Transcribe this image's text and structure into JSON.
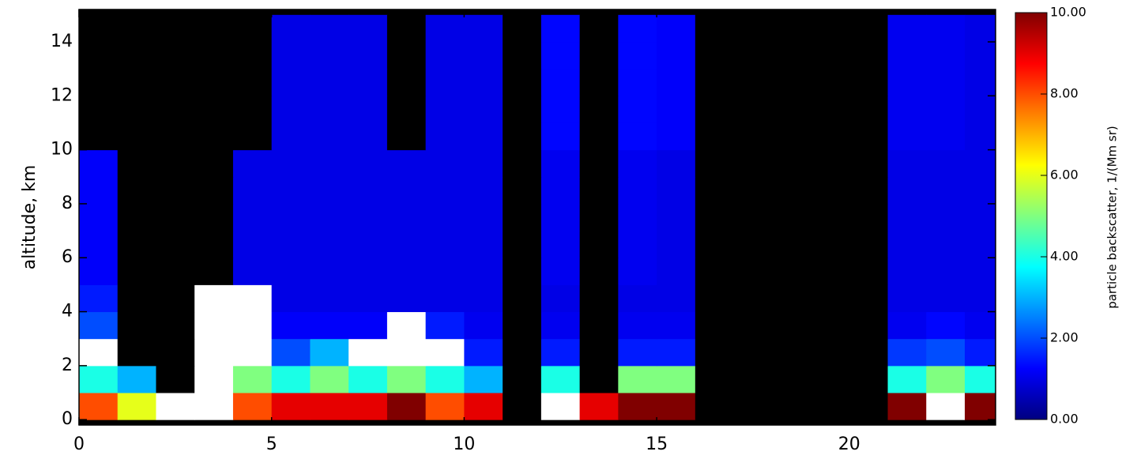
{
  "chart_data": {
    "type": "heatmap",
    "ylabel": "altitude, km",
    "colorbar_label": "particle backscatter, 1/(Mm sr)",
    "xbins": [
      0,
      1,
      2,
      3,
      4,
      5,
      6,
      7,
      8,
      9,
      10,
      11,
      12,
      13,
      14,
      15,
      16,
      17,
      18,
      19,
      20,
      21,
      22,
      23,
      24
    ],
    "ybins": [
      0,
      1,
      2,
      3,
      4,
      5,
      6,
      7,
      8,
      9,
      10,
      11,
      12,
      13,
      14,
      15
    ],
    "values": [
      [
        8,
        6,
        12,
        12,
        8,
        9,
        9,
        9,
        10,
        8,
        9,
        null,
        12,
        9,
        10,
        10,
        null,
        null,
        null,
        null,
        null,
        10,
        12,
        10
      ],
      [
        4,
        3,
        null,
        12,
        5,
        4,
        5,
        4,
        5,
        4,
        3,
        null,
        4,
        null,
        5,
        5,
        null,
        null,
        null,
        null,
        null,
        4,
        5,
        4
      ],
      [
        12,
        null,
        null,
        12,
        12,
        2,
        3,
        12,
        12,
        12,
        1.5,
        null,
        1.5,
        null,
        1.5,
        1.5,
        null,
        null,
        null,
        null,
        null,
        1.8,
        2,
        1.5
      ],
      [
        2,
        null,
        null,
        12,
        12,
        1.2,
        1.2,
        1.2,
        12,
        1.5,
        1.1,
        null,
        1.1,
        null,
        1.1,
        1.1,
        null,
        null,
        null,
        null,
        null,
        1.1,
        1.3,
        1.1
      ],
      [
        1.5,
        null,
        null,
        12,
        12,
        1,
        1,
        1,
        1,
        1,
        1,
        null,
        1,
        null,
        1,
        1,
        null,
        null,
        null,
        null,
        null,
        1,
        1,
        1
      ],
      [
        1.2,
        null,
        null,
        null,
        1,
        1,
        1,
        1,
        1,
        1,
        1,
        null,
        1.1,
        null,
        1.1,
        1,
        null,
        null,
        null,
        null,
        null,
        1,
        1,
        1
      ],
      [
        1.2,
        null,
        null,
        null,
        1,
        1,
        1,
        1,
        1,
        1,
        1,
        null,
        1.1,
        null,
        1.1,
        1,
        null,
        null,
        null,
        null,
        null,
        1,
        1,
        1
      ],
      [
        1.2,
        null,
        null,
        null,
        1,
        1,
        1,
        1,
        1,
        1,
        1,
        null,
        1.1,
        null,
        1.1,
        1,
        null,
        null,
        null,
        null,
        null,
        1,
        1,
        1
      ],
      [
        1.2,
        null,
        null,
        null,
        1,
        1,
        1,
        1,
        1,
        1,
        1,
        null,
        1.1,
        null,
        1.1,
        1,
        null,
        null,
        null,
        null,
        null,
        1,
        1,
        1
      ],
      [
        1.2,
        null,
        null,
        null,
        1,
        1,
        1,
        1,
        1,
        1,
        1,
        null,
        1.1,
        null,
        1.1,
        1,
        null,
        null,
        null,
        null,
        null,
        1,
        1,
        1
      ],
      [
        null,
        null,
        null,
        null,
        null,
        1,
        1,
        1,
        null,
        1,
        1,
        null,
        1.3,
        null,
        1.3,
        1.2,
        null,
        null,
        null,
        null,
        null,
        1.1,
        1.1,
        1
      ],
      [
        null,
        null,
        null,
        null,
        null,
        1,
        1,
        1,
        null,
        1,
        1,
        null,
        1.3,
        null,
        1.3,
        1.2,
        null,
        null,
        null,
        null,
        null,
        1.1,
        1.1,
        1
      ],
      [
        null,
        null,
        null,
        null,
        null,
        1,
        1,
        1,
        null,
        1,
        1,
        null,
        1.3,
        null,
        1.3,
        1.2,
        null,
        null,
        null,
        null,
        null,
        1.1,
        1.1,
        1
      ],
      [
        null,
        null,
        null,
        null,
        null,
        1,
        1,
        1,
        null,
        1,
        1,
        null,
        1.3,
        null,
        1.3,
        1.2,
        null,
        null,
        null,
        null,
        null,
        1.1,
        1.1,
        1
      ],
      [
        null,
        null,
        null,
        null,
        null,
        1,
        1,
        1,
        null,
        1,
        1,
        null,
        1.3,
        null,
        1.3,
        1.2,
        null,
        null,
        null,
        null,
        null,
        1.1,
        1.1,
        1
      ]
    ],
    "xlim": [
      0,
      23.8
    ],
    "ylim": [
      -0.2,
      15.2
    ],
    "xticks": [
      0,
      5,
      10,
      15,
      20
    ],
    "yticks": [
      0,
      2,
      4,
      6,
      8,
      10,
      12,
      14
    ],
    "clim": [
      0,
      10
    ],
    "cticks": [
      {
        "value": 0,
        "label": "0.00"
      },
      {
        "value": 2,
        "label": "2.00"
      },
      {
        "value": 4,
        "label": "4.00"
      },
      {
        "value": 6,
        "label": "6.00"
      },
      {
        "value": 8,
        "label": "8.00"
      },
      {
        "value": 10,
        "label": "10.00"
      }
    ],
    "colormap": [
      "#000080",
      "#0000ff",
      "#0080ff",
      "#00ffff",
      "#80ff80",
      "#ffff00",
      "#ff8000",
      "#ff0000",
      "#800000"
    ],
    "over_color": "#ffffff",
    "bad_color": "#000000"
  }
}
